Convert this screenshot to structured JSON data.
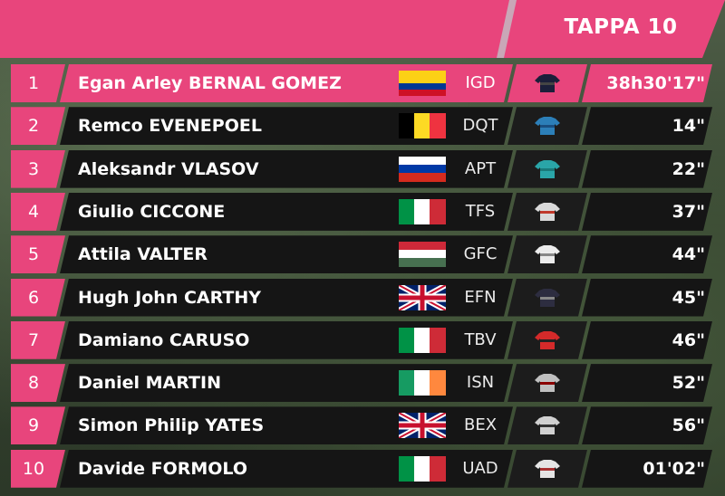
{
  "header": {
    "title": "TAPPA 10",
    "brand_color": "#e8457c"
  },
  "standings": [
    {
      "pos": "1",
      "name": "Egan Arley BERNAL GOMEZ",
      "flag": "colombia",
      "team": "IGD",
      "jersey": "team-jersey-icon",
      "time": "38h30'17\""
    },
    {
      "pos": "2",
      "name": "Remco EVENEPOEL",
      "flag": "belgium",
      "team": "DQT",
      "jersey": "team-jersey-icon",
      "time": "14\""
    },
    {
      "pos": "3",
      "name": "Aleksandr VLASOV",
      "flag": "russia",
      "team": "APT",
      "jersey": "team-jersey-icon",
      "time": "22\""
    },
    {
      "pos": "4",
      "name": "Giulio CICCONE",
      "flag": "italy",
      "team": "TFS",
      "jersey": "team-jersey-icon",
      "time": "37\""
    },
    {
      "pos": "5",
      "name": "Attila VALTER",
      "flag": "hungary",
      "team": "GFC",
      "jersey": "team-jersey-icon",
      "time": "44\""
    },
    {
      "pos": "6",
      "name": "Hugh John CARTHY",
      "flag": "united-kingdom",
      "team": "EFN",
      "jersey": "team-jersey-icon",
      "time": "45\""
    },
    {
      "pos": "7",
      "name": "Damiano CARUSO",
      "flag": "italy",
      "team": "TBV",
      "jersey": "team-jersey-icon",
      "time": "46\""
    },
    {
      "pos": "8",
      "name": "Daniel MARTIN",
      "flag": "ireland",
      "team": "ISN",
      "jersey": "team-jersey-icon",
      "time": "52\""
    },
    {
      "pos": "9",
      "name": "Simon Philip YATES",
      "flag": "united-kingdom",
      "team": "BEX",
      "jersey": "team-jersey-icon",
      "time": "56\""
    },
    {
      "pos": "10",
      "name": "Davide FORMOLO",
      "flag": "italy",
      "team": "UAD",
      "jersey": "team-jersey-icon",
      "time": "01'02\""
    }
  ]
}
